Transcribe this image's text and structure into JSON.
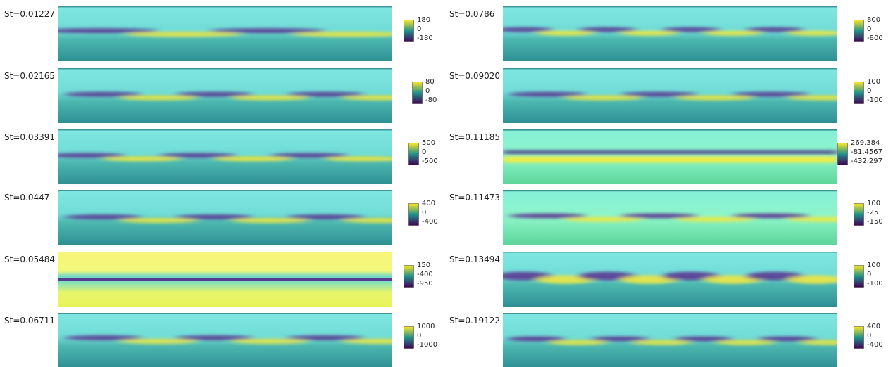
{
  "panels": [
    {
      "label": "St=0.01227",
      "colorbar_ticks": [
        "180",
        "0",
        "-180"
      ]
    },
    {
      "label": "St=0.02165",
      "colorbar_ticks": [
        "80",
        "0",
        "-80"
      ]
    },
    {
      "label": "St=0.03391",
      "colorbar_ticks": [
        "500",
        "0",
        "-500"
      ]
    },
    {
      "label": "St=0.0447",
      "colorbar_ticks": [
        "400",
        "0",
        "-400"
      ]
    },
    {
      "label": "St=0.05484",
      "colorbar_ticks": [
        "150",
        "-400",
        "-950"
      ]
    },
    {
      "label": "St=0.06711",
      "colorbar_ticks": [
        "1000",
        "0",
        "-1000"
      ]
    },
    {
      "label": "St=0.0786",
      "colorbar_ticks": [
        "800",
        "0",
        "-800"
      ]
    },
    {
      "label": "St=0.09020",
      "colorbar_ticks": [
        "100",
        "0",
        "-100"
      ]
    },
    {
      "label": "St=0.11185",
      "colorbar_ticks": [
        "269.384",
        "-81.4567",
        "-432.297"
      ]
    },
    {
      "label": "St=0.11473",
      "colorbar_ticks": [
        "100",
        "-25",
        "-150"
      ]
    },
    {
      "label": "St=0.13494",
      "colorbar_ticks": [
        "100",
        "0",
        "-100"
      ]
    },
    {
      "label": "St=0.19122",
      "colorbar_ticks": [
        "400",
        "0",
        "-400"
      ]
    }
  ]
}
